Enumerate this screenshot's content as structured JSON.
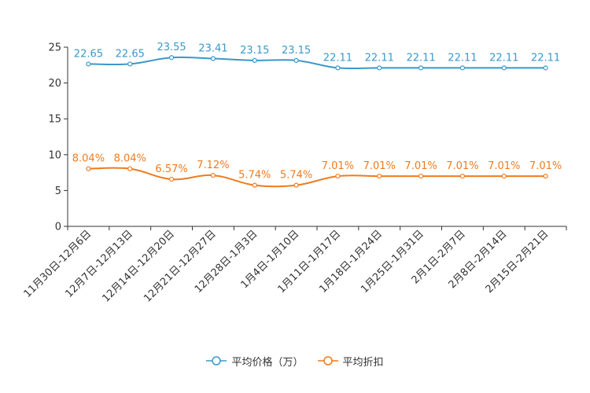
{
  "chart_data": {
    "type": "line",
    "title": "",
    "xlabel": "",
    "ylabel": "",
    "ylim": [
      0,
      25
    ],
    "yticks": [
      0,
      5,
      10,
      15,
      20,
      25
    ],
    "legend_position": "bottom-center",
    "categories": [
      "11月30日-12月6日",
      "12月7日-12月13日",
      "12月14日-12月20日",
      "12月21日-12月27日",
      "12月28日-1月3日",
      "1月4日-1月10日",
      "1月11日-1月17日",
      "1月18日-1月24日",
      "1月25日-1月31日",
      "2月1日-2月7日",
      "2月8日-2月14日",
      "2月15日-2月21日"
    ],
    "series": [
      {
        "name": "平均价格（万）",
        "color": "#3b98c9",
        "values": [
          22.65,
          22.65,
          23.55,
          23.41,
          23.15,
          23.15,
          22.11,
          22.11,
          22.11,
          22.11,
          22.11,
          22.11
        ],
        "labels": [
          "22.65",
          "22.65",
          "23.55",
          "23.41",
          "23.15",
          "23.15",
          "22.11",
          "22.11",
          "22.11",
          "22.11",
          "22.11",
          "22.11"
        ]
      },
      {
        "name": "平均折扣",
        "color": "#f07b1e",
        "values": [
          8.04,
          8.04,
          6.57,
          7.12,
          5.74,
          5.74,
          7.01,
          7.01,
          7.01,
          7.01,
          7.01,
          7.01
        ],
        "labels": [
          "8.04%",
          "8.04%",
          "6.57%",
          "7.12%",
          "5.74%",
          "5.74%",
          "7.01%",
          "7.01%",
          "7.01%",
          "7.01%",
          "7.01%",
          "7.01%"
        ]
      }
    ]
  }
}
